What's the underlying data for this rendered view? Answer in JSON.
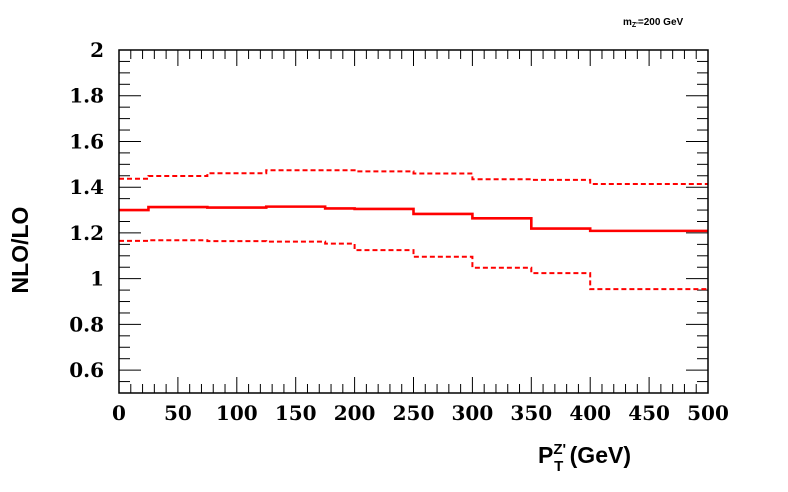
{
  "chart_data": {
    "type": "line",
    "step": true,
    "annotation": {
      "prefix": "m",
      "sub": "Z'",
      "suffix": "=200 GeV"
    },
    "xlabel": {
      "main": "P",
      "sub": "T",
      "sup": "Z'",
      "unit": " (GeV)"
    },
    "ylabel": "NLO/LO",
    "xlim": [
      0,
      500
    ],
    "ylim": [
      0.5,
      2.0
    ],
    "x_ticks": [
      0,
      50,
      100,
      150,
      200,
      250,
      300,
      350,
      400,
      450,
      500
    ],
    "y_ticks": [
      "0.6",
      "0.8",
      "1",
      "1.2",
      "1.4",
      "1.6",
      "1.8",
      "2"
    ],
    "bin_edges": [
      0,
      25,
      75,
      125,
      175,
      200,
      250,
      300,
      350,
      400,
      500
    ],
    "color": "#ff0000",
    "series": [
      {
        "style": "solid",
        "values": [
          1.3,
          1.313,
          1.311,
          1.315,
          1.307,
          1.305,
          1.283,
          1.264,
          1.219,
          1.209
        ]
      },
      {
        "style": "dashed",
        "values": [
          1.437,
          1.449,
          1.461,
          1.474,
          1.474,
          1.469,
          1.46,
          1.435,
          1.432,
          1.414
        ]
      },
      {
        "style": "dashed",
        "values": [
          1.165,
          1.168,
          1.164,
          1.162,
          1.153,
          1.125,
          1.096,
          1.048,
          1.024,
          0.954
        ]
      }
    ]
  }
}
